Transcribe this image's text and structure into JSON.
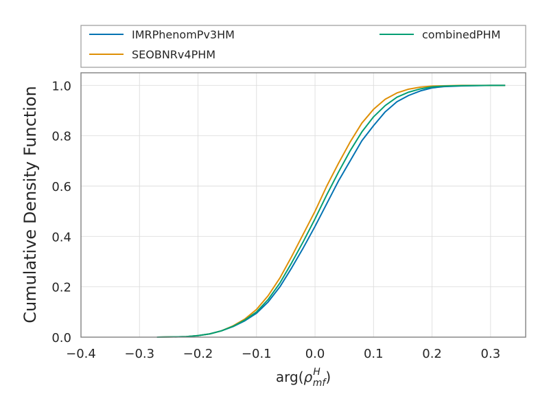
{
  "chart_data": {
    "type": "line",
    "xlabel": "arg(ρmfH)",
    "ylabel": "Cumulative Density Function",
    "xlim": [
      -0.4,
      0.36
    ],
    "ylim": [
      0.0,
      1.05
    ],
    "x_ticks": [
      "−0.4",
      "−0.3",
      "−0.2",
      "−0.1",
      "0.0",
      "0.1",
      "0.2",
      "0.3"
    ],
    "x_tick_values": [
      -0.4,
      -0.3,
      -0.2,
      -0.1,
      0.0,
      0.1,
      0.2,
      0.3
    ],
    "y_ticks": [
      "0.0",
      "0.2",
      "0.4",
      "0.6",
      "0.8",
      "1.0"
    ],
    "y_tick_values": [
      0.0,
      0.2,
      0.4,
      0.6,
      0.8,
      1.0
    ],
    "grid": true,
    "legend_placement": "above-plot",
    "series": [
      {
        "name": "IMRPhenomPv3HM",
        "color": "#0072b2",
        "points": [
          [
            -0.27,
            0.0
          ],
          [
            -0.22,
            0.002
          ],
          [
            -0.2,
            0.006
          ],
          [
            -0.18,
            0.013
          ],
          [
            -0.16,
            0.025
          ],
          [
            -0.14,
            0.042
          ],
          [
            -0.12,
            0.065
          ],
          [
            -0.1,
            0.095
          ],
          [
            -0.08,
            0.14
          ],
          [
            -0.06,
            0.2
          ],
          [
            -0.04,
            0.275
          ],
          [
            -0.02,
            0.355
          ],
          [
            0.0,
            0.44
          ],
          [
            0.02,
            0.53
          ],
          [
            0.04,
            0.62
          ],
          [
            0.06,
            0.7
          ],
          [
            0.08,
            0.78
          ],
          [
            0.1,
            0.84
          ],
          [
            0.12,
            0.895
          ],
          [
            0.14,
            0.935
          ],
          [
            0.16,
            0.96
          ],
          [
            0.18,
            0.978
          ],
          [
            0.2,
            0.99
          ],
          [
            0.22,
            0.995
          ],
          [
            0.25,
            0.998
          ],
          [
            0.3,
            1.0
          ],
          [
            0.325,
            1.0
          ]
        ]
      },
      {
        "name": "SEOBNRv4PHM",
        "color": "#de8f05",
        "points": [
          [
            -0.27,
            0.0
          ],
          [
            -0.22,
            0.002
          ],
          [
            -0.2,
            0.006
          ],
          [
            -0.18,
            0.013
          ],
          [
            -0.16,
            0.025
          ],
          [
            -0.14,
            0.045
          ],
          [
            -0.12,
            0.072
          ],
          [
            -0.1,
            0.11
          ],
          [
            -0.08,
            0.165
          ],
          [
            -0.06,
            0.235
          ],
          [
            -0.04,
            0.32
          ],
          [
            -0.02,
            0.41
          ],
          [
            0.0,
            0.5
          ],
          [
            0.02,
            0.6
          ],
          [
            0.04,
            0.69
          ],
          [
            0.06,
            0.775
          ],
          [
            0.08,
            0.85
          ],
          [
            0.1,
            0.905
          ],
          [
            0.12,
            0.945
          ],
          [
            0.14,
            0.97
          ],
          [
            0.16,
            0.985
          ],
          [
            0.18,
            0.993
          ],
          [
            0.2,
            0.997
          ],
          [
            0.25,
            1.0
          ],
          [
            0.3,
            1.0
          ],
          [
            0.325,
            1.0
          ]
        ]
      },
      {
        "name": "combinedPHM",
        "color": "#029e73",
        "points": [
          [
            -0.27,
            0.0
          ],
          [
            -0.22,
            0.002
          ],
          [
            -0.2,
            0.006
          ],
          [
            -0.18,
            0.013
          ],
          [
            -0.16,
            0.025
          ],
          [
            -0.14,
            0.043
          ],
          [
            -0.12,
            0.068
          ],
          [
            -0.1,
            0.1
          ],
          [
            -0.08,
            0.15
          ],
          [
            -0.06,
            0.215
          ],
          [
            -0.04,
            0.295
          ],
          [
            -0.02,
            0.38
          ],
          [
            0.0,
            0.47
          ],
          [
            0.02,
            0.565
          ],
          [
            0.04,
            0.655
          ],
          [
            0.06,
            0.74
          ],
          [
            0.08,
            0.815
          ],
          [
            0.1,
            0.875
          ],
          [
            0.12,
            0.92
          ],
          [
            0.14,
            0.953
          ],
          [
            0.16,
            0.973
          ],
          [
            0.18,
            0.986
          ],
          [
            0.2,
            0.994
          ],
          [
            0.22,
            0.997
          ],
          [
            0.25,
            0.999
          ],
          [
            0.3,
            1.0
          ],
          [
            0.325,
            1.0
          ]
        ]
      }
    ]
  }
}
